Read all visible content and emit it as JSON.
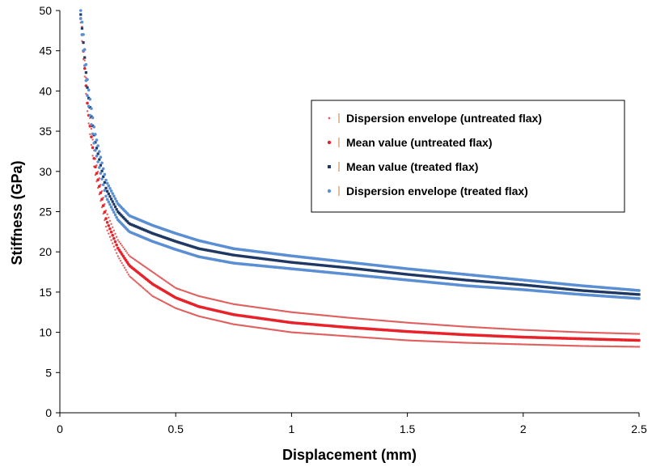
{
  "chart_data": {
    "type": "scatter",
    "title": "",
    "xlabel": "Displacement (mm)",
    "ylabel": "Stiffness (GPa)",
    "xlim": [
      0,
      2.5
    ],
    "ylim": [
      0,
      50
    ],
    "x_ticks": [
      "0",
      "0.5",
      "1",
      "1.5",
      "2",
      "2.5"
    ],
    "y_ticks": [
      "0",
      "5",
      "10",
      "15",
      "20",
      "25",
      "30",
      "35",
      "40",
      "45",
      "50"
    ],
    "grid": false,
    "legend_position": "top-right",
    "x": [
      0.09,
      0.1,
      0.12,
      0.15,
      0.2,
      0.25,
      0.3,
      0.4,
      0.5,
      0.6,
      0.75,
      1.0,
      1.25,
      1.5,
      1.75,
      2.0,
      2.25,
      2.5
    ],
    "series": [
      {
        "name": "Dispersion envelope (untreated flax)",
        "color": "#e06060",
        "marker": "dot-small",
        "values": [
          48.5,
          44.5,
          37.0,
          30.0,
          23.0,
          19.5,
          17.0,
          14.5,
          13.0,
          12.0,
          11.0,
          10.0,
          9.5,
          9.0,
          8.7,
          8.5,
          8.3,
          8.2
        ]
      },
      {
        "name": "Dispersion envelope (untreated flax)",
        "color": "#e06060",
        "marker": "dot-small",
        "values": [
          50.0,
          46.5,
          39.0,
          32.0,
          25.0,
          21.5,
          19.5,
          17.5,
          15.5,
          14.5,
          13.5,
          12.5,
          11.8,
          11.2,
          10.7,
          10.3,
          10.0,
          9.8
        ]
      },
      {
        "name": "Mean value (untreated flax)",
        "color": "#e8222a",
        "marker": "dot",
        "values": [
          49.0,
          45.5,
          38.0,
          31.0,
          24.0,
          20.5,
          18.3,
          16.0,
          14.3,
          13.2,
          12.2,
          11.2,
          10.6,
          10.1,
          9.7,
          9.4,
          9.2,
          9.0
        ]
      },
      {
        "name": "Mean value (treated flax)",
        "color": "#1f3864",
        "marker": "square",
        "values": [
          49.5,
          46.5,
          40.0,
          34.0,
          27.8,
          25.0,
          23.5,
          22.3,
          21.3,
          20.4,
          19.6,
          18.7,
          18.0,
          17.2,
          16.5,
          15.9,
          15.2,
          14.7
        ]
      },
      {
        "name": "Dispersion envelope (treated flax)",
        "color": "#5b8fd4",
        "marker": "dot",
        "values": [
          50.0,
          47.5,
          41.0,
          35.0,
          28.8,
          26.0,
          24.5,
          23.3,
          22.3,
          21.4,
          20.4,
          19.5,
          18.7,
          17.9,
          17.2,
          16.5,
          15.8,
          15.2
        ]
      },
      {
        "name": "Dispersion envelope (treated flax)",
        "color": "#5b8fd4",
        "marker": "dot",
        "values": [
          49.0,
          45.5,
          39.0,
          33.0,
          26.8,
          24.0,
          22.5,
          21.3,
          20.3,
          19.4,
          18.6,
          17.9,
          17.2,
          16.5,
          15.8,
          15.3,
          14.7,
          14.2
        ]
      }
    ],
    "legend": [
      {
        "label": "Dispersion envelope (untreated flax)",
        "color": "#e06060",
        "marker": "dot-small"
      },
      {
        "label": "Mean value (untreated flax)",
        "color": "#e8222a",
        "marker": "dot"
      },
      {
        "label": "Mean value (treated flax)",
        "color": "#1f3864",
        "marker": "square"
      },
      {
        "label": "Dispersion envelope (treated flax)",
        "color": "#5b8fd4",
        "marker": "dot"
      }
    ],
    "legend_bar_color": "#c07840"
  }
}
